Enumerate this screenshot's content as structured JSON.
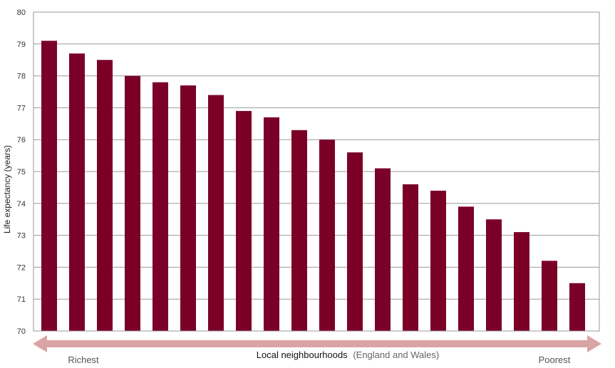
{
  "chart_data": {
    "type": "bar",
    "title": "",
    "ylabel": "Life expectancy (years)",
    "xlabel": "Local neighbourhoods",
    "xlabel_note": "(England and Wales)",
    "x_start_label": "Richest",
    "x_end_label": "Poorest",
    "ylim": [
      70,
      80
    ],
    "yticks": [
      "70",
      "71",
      "72",
      "73",
      "74",
      "75",
      "76",
      "77",
      "78",
      "79",
      "80"
    ],
    "grid": true,
    "legend": "none",
    "bar_color": "#7a0028",
    "arrow_color": "#dba4a4",
    "values": [
      79.1,
      78.7,
      78.5,
      78.0,
      77.8,
      77.7,
      77.4,
      76.9,
      76.7,
      76.3,
      76.0,
      75.6,
      75.1,
      74.6,
      74.4,
      73.9,
      73.5,
      73.1,
      72.2,
      71.5
    ]
  }
}
